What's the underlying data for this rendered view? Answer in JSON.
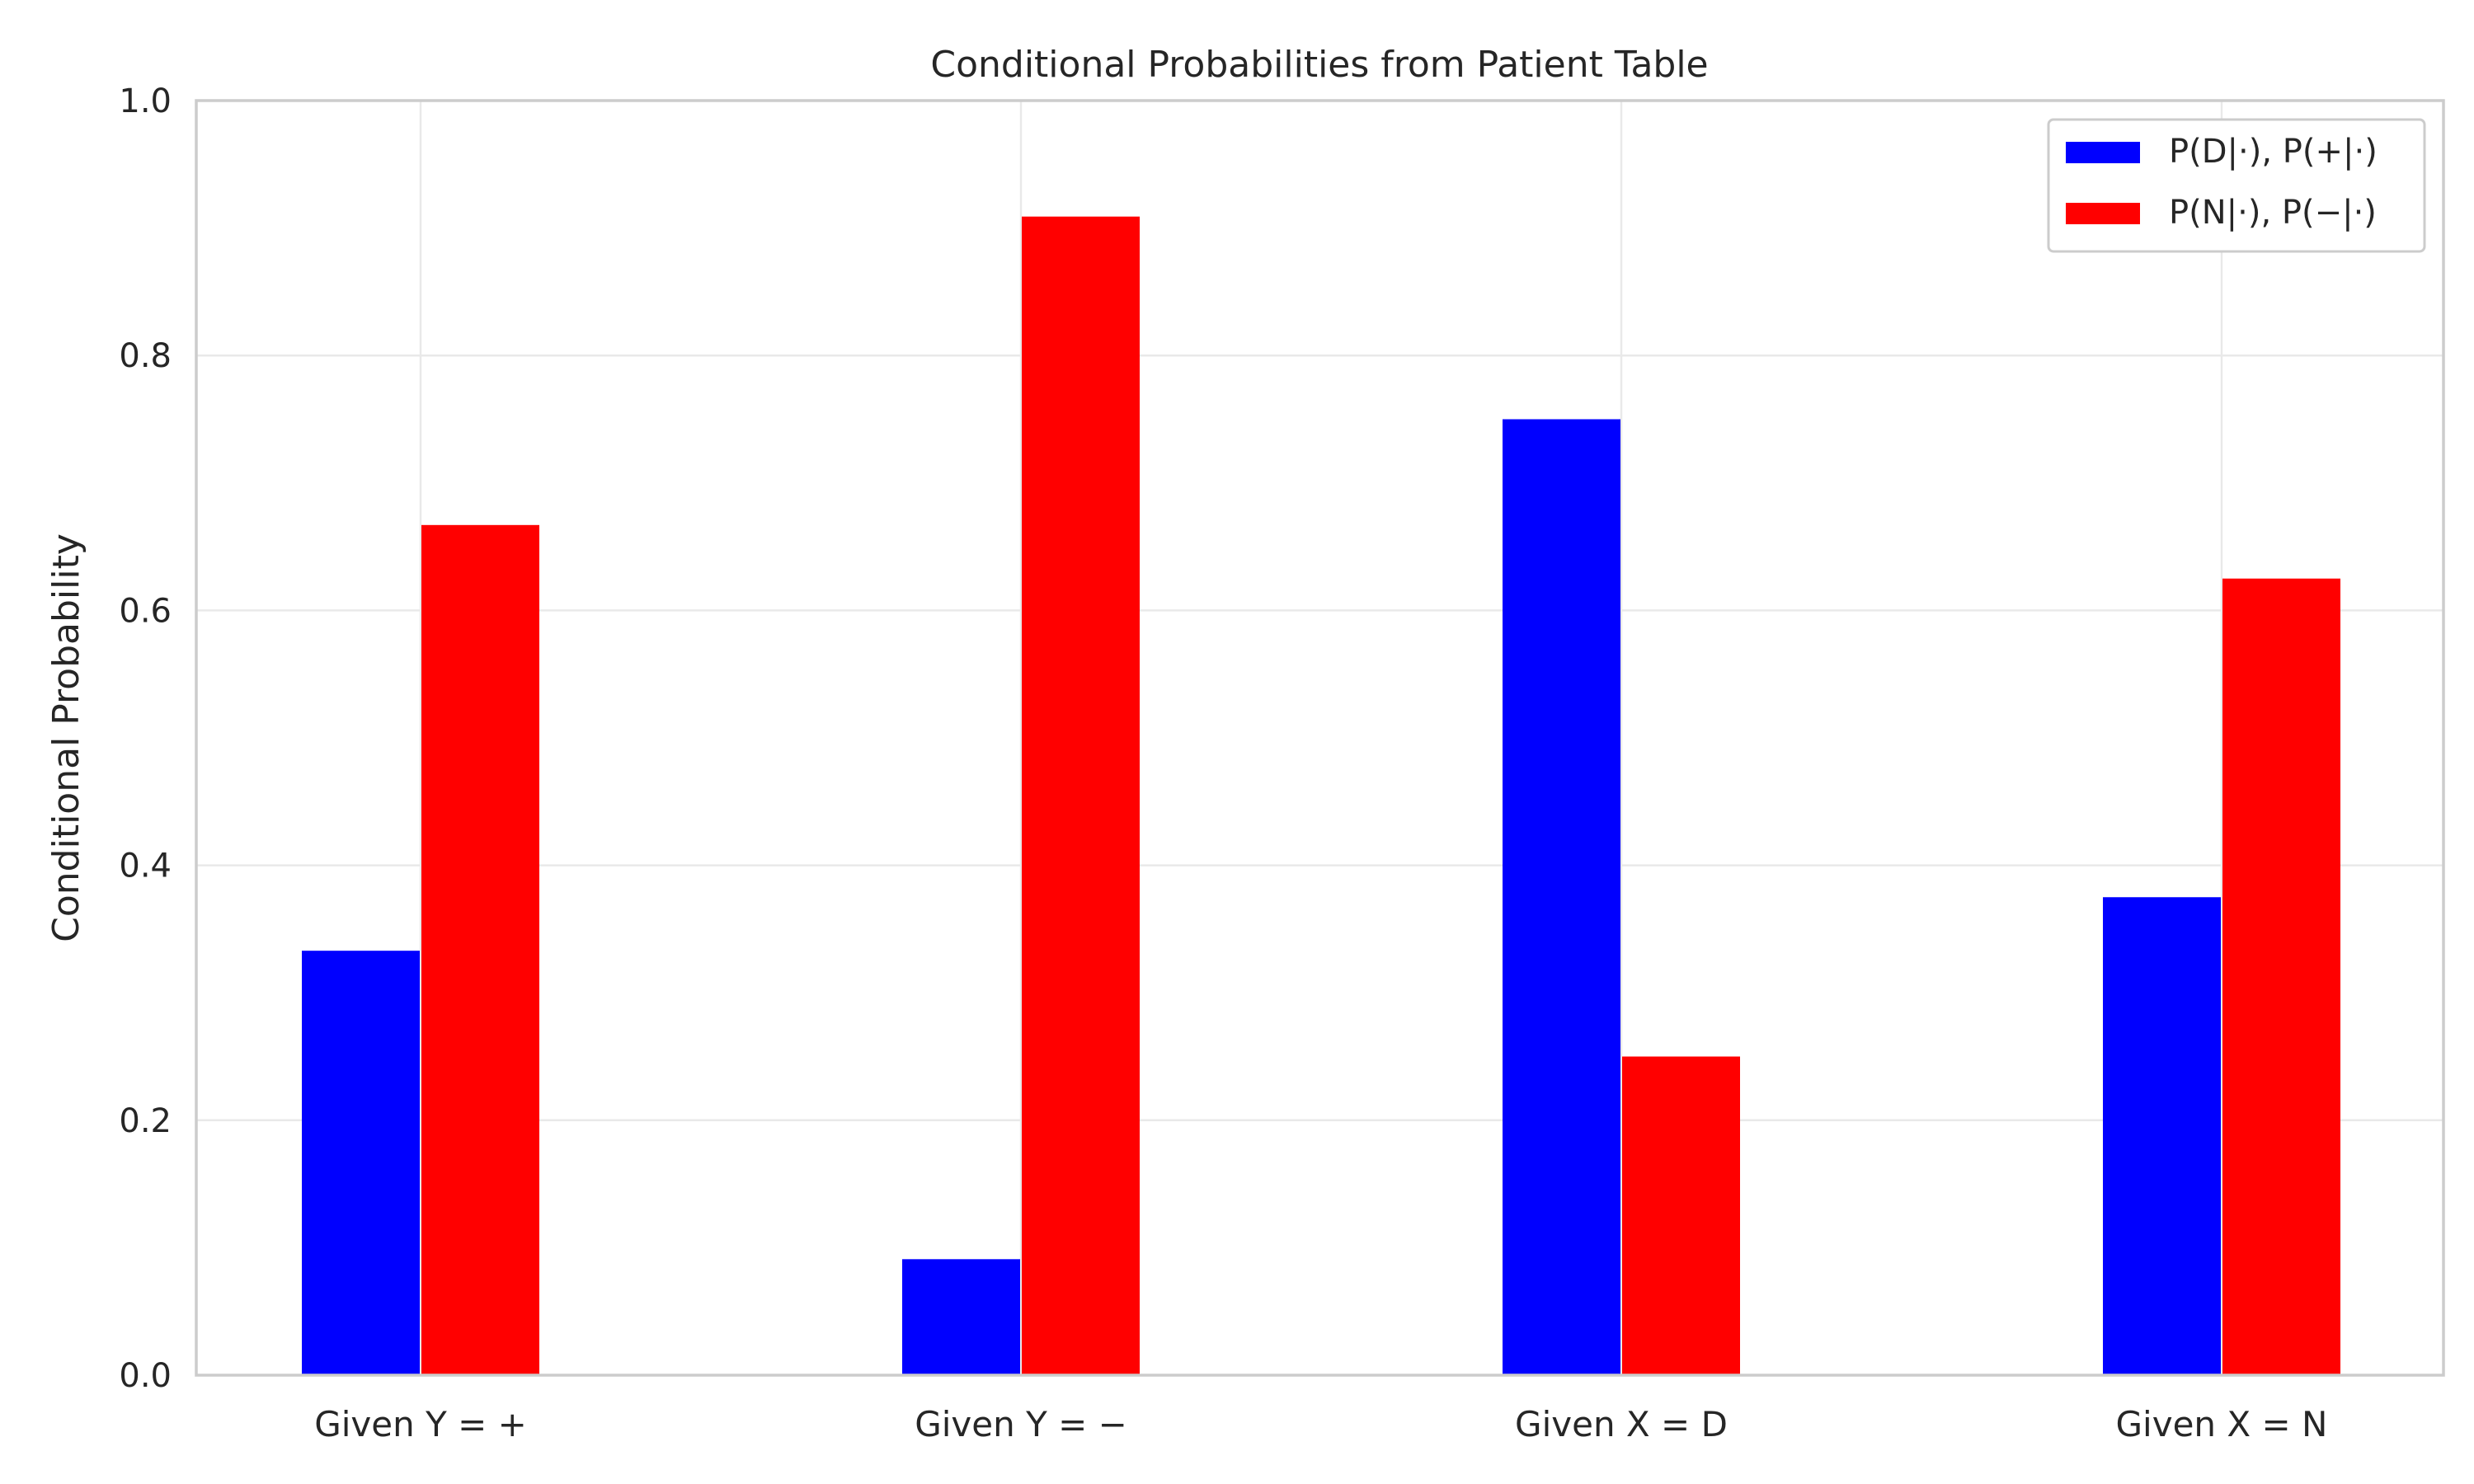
{
  "chart_data": {
    "type": "bar",
    "title": "Conditional Probabilities from Patient Table",
    "ylabel": "Conditional Probability",
    "xlabel": "",
    "ylim": [
      0,
      1
    ],
    "yticks": [
      "0.0",
      "0.2",
      "0.4",
      "0.6",
      "0.8",
      "1.0"
    ],
    "grid": true,
    "legend_position": "top-right",
    "categories": [
      "Given Y = +",
      "Given Y = −",
      "Given X = D",
      "Given X = N"
    ],
    "series": [
      {
        "name": "P(D|·), P(+|·)",
        "color": "#0000ff",
        "values": [
          0.333,
          0.091,
          0.75,
          0.375
        ]
      },
      {
        "name": "P(N|·), P(−|·)",
        "color": "#ff0000",
        "values": [
          0.667,
          0.909,
          0.25,
          0.625
        ]
      }
    ]
  }
}
